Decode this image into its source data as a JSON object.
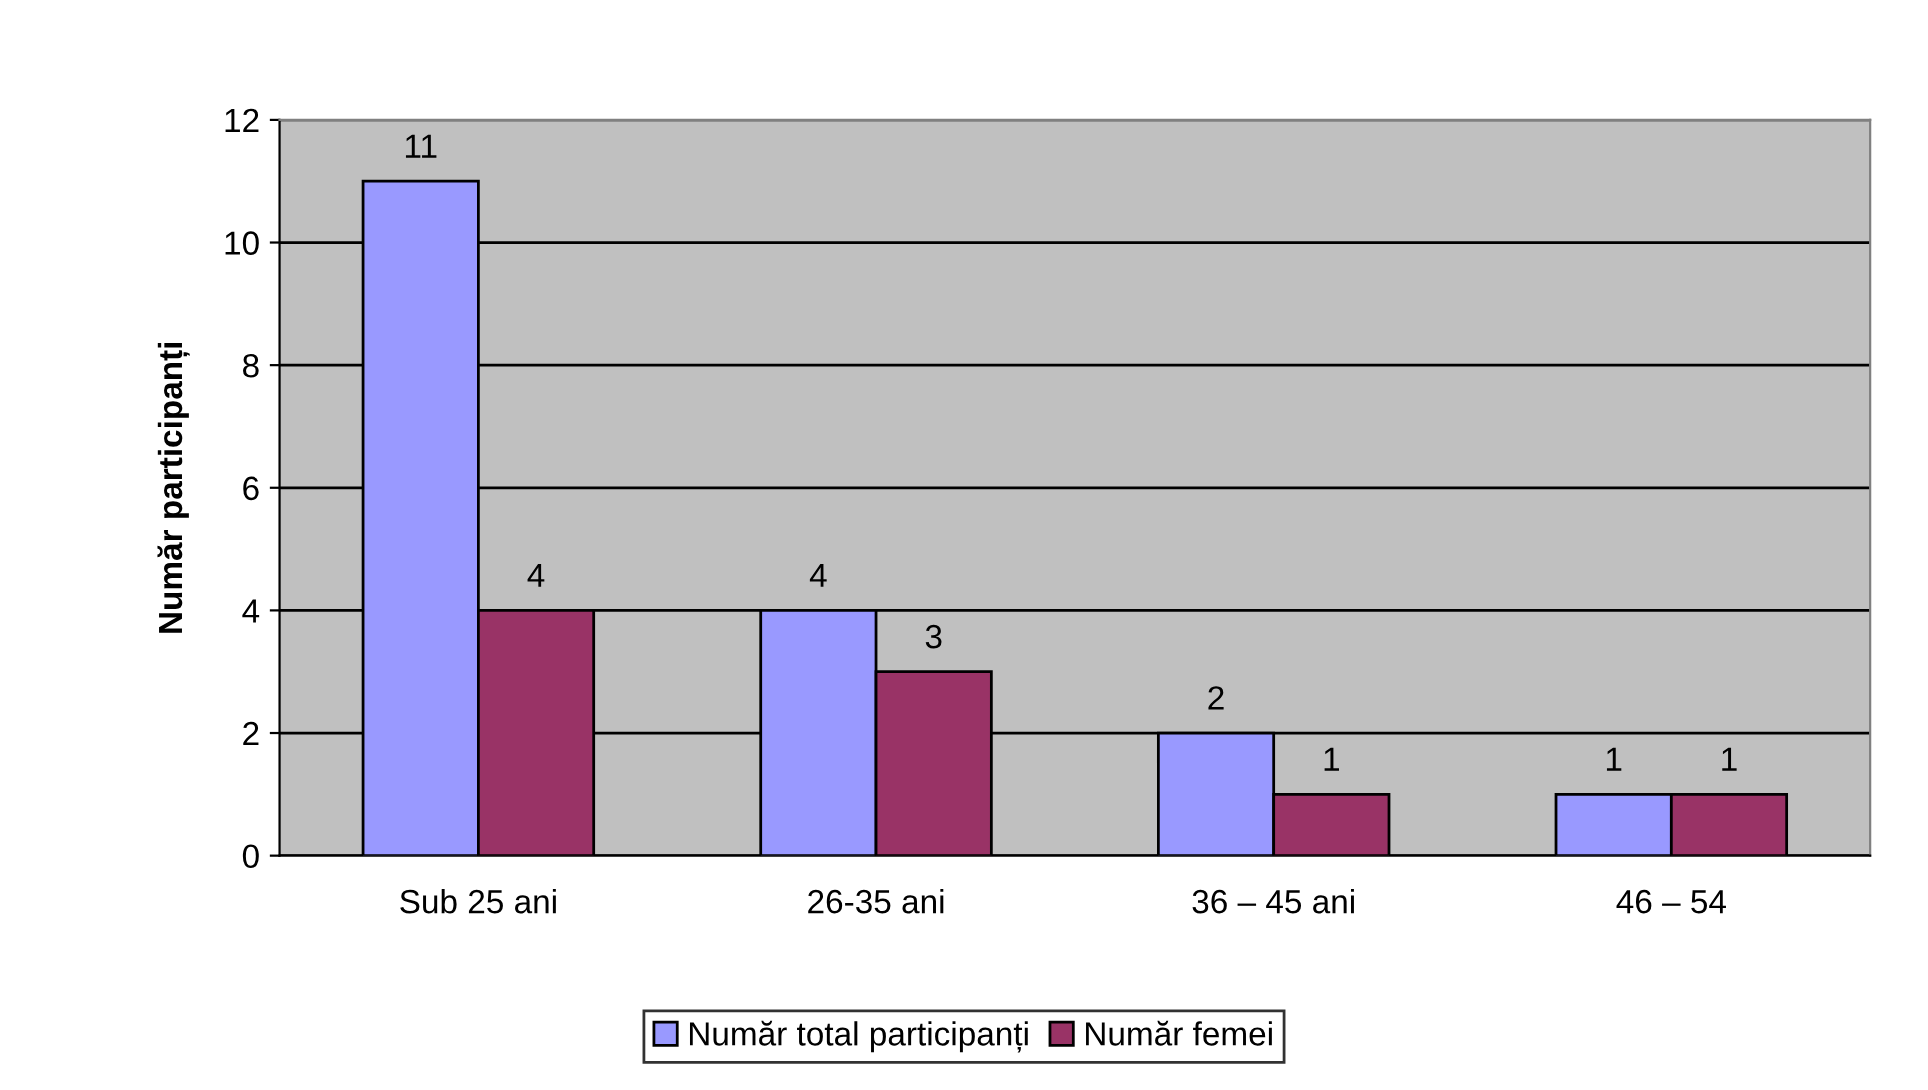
{
  "chart_data": {
    "type": "bar",
    "ylabel": "Număr participanți",
    "categories": [
      "Sub 25 ani",
      "26-35 ani",
      "36 – 45 ani",
      "46 – 54"
    ],
    "series": [
      {
        "name": "Număr total participanți",
        "color": "#9999ff",
        "values": [
          11,
          4,
          2,
          1
        ]
      },
      {
        "name": "Număr femei",
        "color": "#993366",
        "values": [
          4,
          3,
          1,
          1
        ]
      }
    ],
    "ylim": [
      0,
      12
    ],
    "yticks": [
      0,
      2,
      4,
      6,
      8,
      10,
      12
    ],
    "grid": "y",
    "legend": "bottom",
    "data_labels": true
  }
}
